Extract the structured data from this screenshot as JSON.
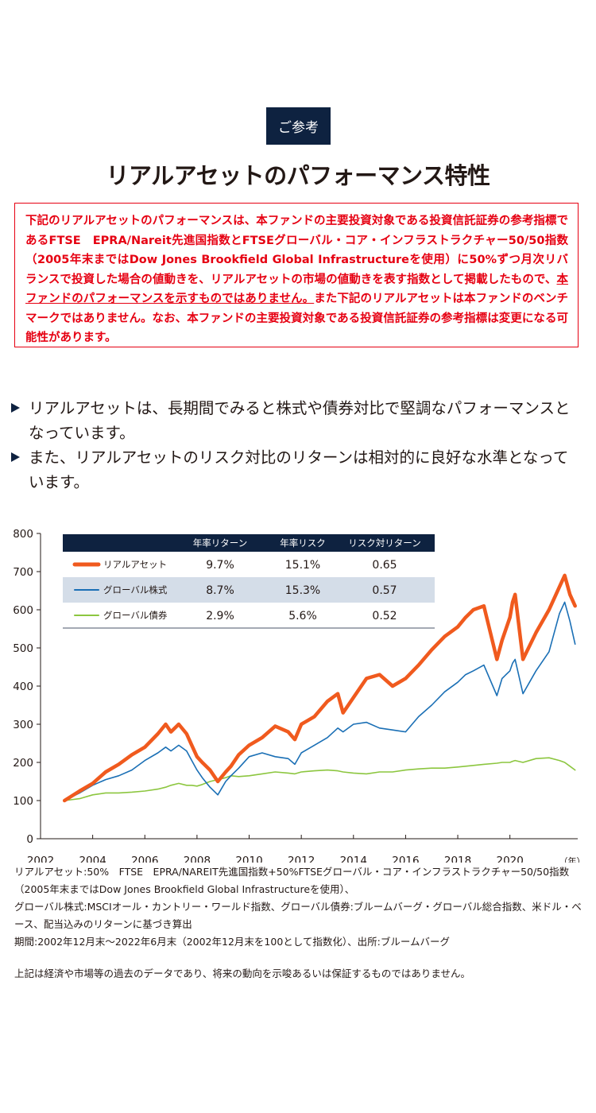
{
  "badge": "ご参考",
  "title": "リアルアセットのパフォーマンス特性",
  "notice": {
    "text_a": "下記のリアルアセットのパフォーマンスは、本ファンドの主要投資対象である投資信託証券の参考指標であるFTSE　EPRA/Nareit先進国指数とFTSEグローバル・コア・インフラストラクチャー50/50指数（2005年末まではDow Jones Brookfield Global Infrastructureを使用）に50%ずつ月次リバランスで投資した場合の値動きを、リアルアセットの市場の値動きを表す指数として掲載したもので、",
    "text_underline": "本ファンドのパフォーマンスを示すものではありません。",
    "text_b": "また下記のリアルアセットは本ファンドのベンチマークではありません。なお、本ファンドの主要投資対象である投資信託証券の参考指標は変更になる可能性があります。"
  },
  "bullets": [
    "リアルアセットは、長期間でみると株式や債券対比で堅調なパフォーマンスとなっています。",
    "また、リアルアセットのリスク対比のリターンは相対的に良好な水準となっています。"
  ],
  "chart_data": {
    "type": "line",
    "x_unit": "（年）",
    "x_ticks": [
      "2002",
      "2004",
      "2006",
      "2008",
      "2010",
      "2012",
      "2014",
      "2016",
      "2018",
      "2020"
    ],
    "x_range": [
      2002.92,
      2022.5
    ],
    "ylim": [
      0,
      800
    ],
    "y_ticks": [
      0,
      100,
      200,
      300,
      400,
      500,
      600,
      700,
      800
    ],
    "x": [
      2002.92,
      2003.5,
      2004,
      2004.5,
      2005,
      2005.5,
      2006,
      2006.5,
      2006.8,
      2007,
      2007.3,
      2007.6,
      2007.8,
      2008,
      2008.2,
      2008.5,
      2008.8,
      2009.1,
      2009.3,
      2009.6,
      2010,
      2010.5,
      2011,
      2011.5,
      2011.75,
      2012,
      2012.5,
      2013,
      2013.4,
      2013.6,
      2014,
      2014.5,
      2015,
      2015.5,
      2016,
      2016.5,
      2017,
      2017.5,
      2018,
      2018.3,
      2018.6,
      2019,
      2019.5,
      2019.7,
      2020,
      2020.1,
      2020.2,
      2020.5,
      2021,
      2021.5,
      2021.9,
      2022.1,
      2022.3,
      2022.5
    ],
    "series": [
      {
        "name": "リアルアセット",
        "color": "#f05a1e",
        "width": 4.5,
        "values": [
          100,
          125,
          145,
          175,
          195,
          220,
          240,
          275,
          300,
          280,
          300,
          275,
          245,
          215,
          200,
          180,
          150,
          175,
          190,
          220,
          245,
          265,
          295,
          280,
          260,
          300,
          320,
          360,
          380,
          330,
          370,
          420,
          430,
          400,
          420,
          455,
          495,
          530,
          555,
          580,
          600,
          610,
          470,
          520,
          580,
          620,
          640,
          470,
          540,
          600,
          660,
          690,
          640,
          610
        ]
      },
      {
        "name": "グローバル株式",
        "color": "#1a6fb5",
        "width": 1.6,
        "values": [
          100,
          120,
          140,
          155,
          165,
          180,
          205,
          225,
          240,
          230,
          245,
          230,
          205,
          180,
          160,
          135,
          115,
          150,
          165,
          185,
          215,
          225,
          215,
          210,
          195,
          225,
          245,
          265,
          290,
          280,
          300,
          305,
          290,
          285,
          280,
          320,
          350,
          385,
          410,
          430,
          440,
          455,
          375,
          420,
          440,
          460,
          470,
          380,
          440,
          490,
          590,
          620,
          570,
          510
        ]
      },
      {
        "name": "グローバル債券",
        "color": "#8cc63f",
        "width": 1.6,
        "values": [
          100,
          105,
          115,
          120,
          120,
          122,
          125,
          130,
          135,
          140,
          145,
          140,
          140,
          138,
          142,
          150,
          155,
          160,
          165,
          163,
          165,
          170,
          175,
          172,
          170,
          175,
          178,
          180,
          178,
          175,
          172,
          170,
          175,
          175,
          180,
          183,
          185,
          185,
          188,
          190,
          192,
          195,
          198,
          200,
          200,
          203,
          205,
          200,
          210,
          212,
          205,
          200,
          190,
          180
        ]
      }
    ],
    "stats_table": {
      "headers": [
        "年率リターン",
        "年率リスク",
        "リスク対リターン"
      ],
      "rows": [
        {
          "name": "リアルアセット",
          "return": "9.7%",
          "risk": "15.1%",
          "ratio": "0.65"
        },
        {
          "name": "グローバル株式",
          "return": "8.7%",
          "risk": "15.3%",
          "ratio": "0.57"
        },
        {
          "name": "グローバル債券",
          "return": "2.9%",
          "risk": "5.6%",
          "ratio": "0.52"
        }
      ],
      "header_bg": "#0e2240",
      "highlight_bg": "#d4dde8"
    }
  },
  "footnotes": [
    "リアルアセット:50%　FTSE　EPRA/NAREIT先進国指数+50%FTSEグローバル・コア・インフラストラクチャー50/50指数（2005年末まではDow Jones Brookfield Global Infrastructureを使用）、",
    "グローバル株式:MSCIオール・カントリー・ワールド指数、グローバル債券:ブルームバーグ・グローバル総合指数、米ドル・ベース、配当込みのリターンに基づき算出",
    "期間:2002年12月末～2022年6月末（2002年12月末を100として指数化）、出所:ブルームバーグ"
  ],
  "disclaimer": "上記は経済や市場等の過去のデータであり、将来の動向を示唆あるいは保証するものではありません。"
}
